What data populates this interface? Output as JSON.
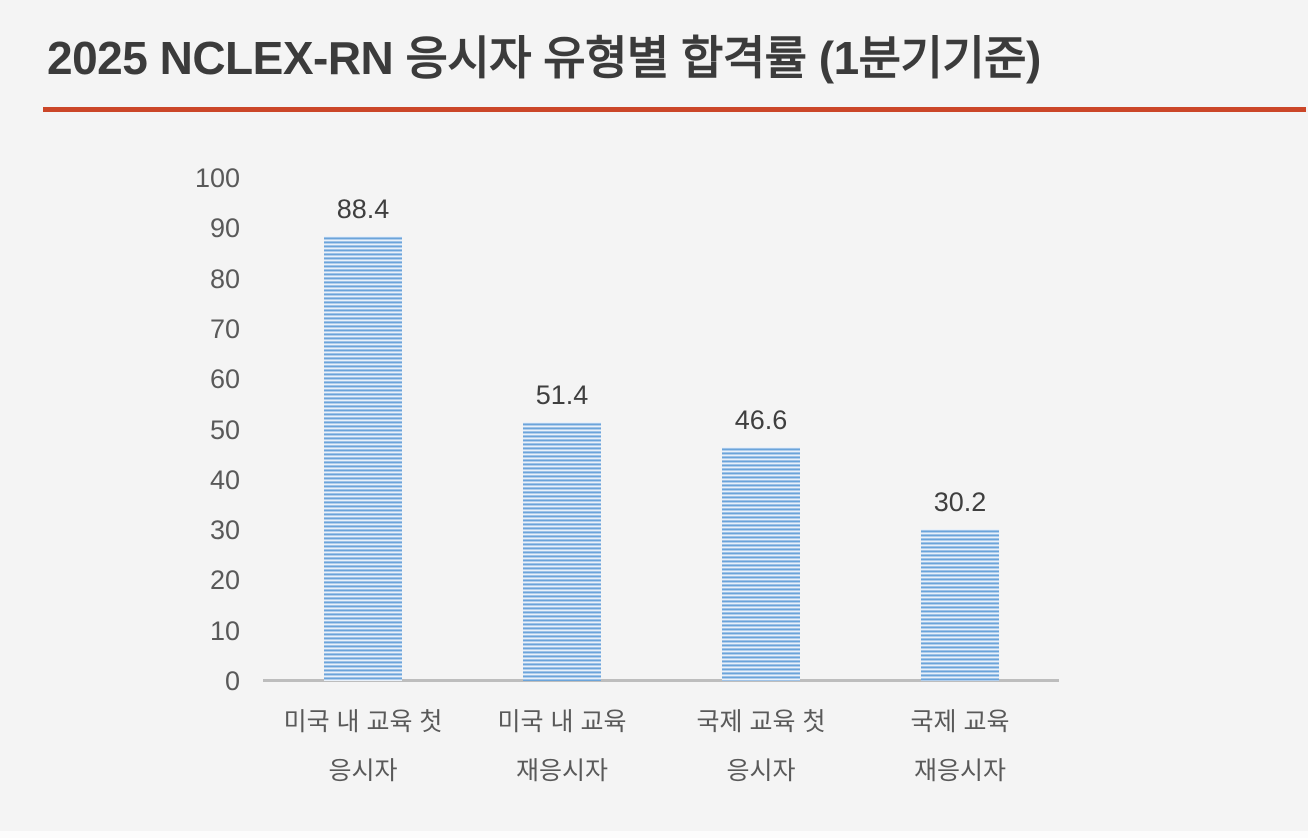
{
  "page": {
    "background_color": "#F4F4F4",
    "title": "2025 NCLEX-RN 응시자 유형별 합격률 (1분기기준)",
    "title_color": "#3B3B3B",
    "title_underline_color": "#CB4628"
  },
  "chart_data": {
    "type": "bar",
    "title": "2025 NCLEX-RN 응시자 유형별 합격률 (1분기기준)",
    "categories": [
      "미국 내 교육 첫\n응시자",
      "미국 내 교육\n재응시자",
      "국제 교육 첫\n응시자",
      "국제 교육\n재응시자"
    ],
    "values": [
      88.4,
      51.4,
      46.6,
      30.2
    ],
    "value_labels": [
      "88.4",
      "51.4",
      "46.6",
      "30.2"
    ],
    "xlabel": "",
    "ylabel": "",
    "ylim": [
      0,
      100
    ],
    "yticks": [
      0,
      10,
      20,
      30,
      40,
      50,
      60,
      70,
      80,
      90,
      100
    ],
    "grid": false,
    "legend": "none",
    "bar_fill_style": "horizontal-stripes",
    "bar_color": "#5B9BD5",
    "bar_stripe_light_color": "#E9F1FA",
    "axis_line_color": "#BDBDBD",
    "tick_label_color": "#595959",
    "value_label_color": "#3F3F3F"
  }
}
